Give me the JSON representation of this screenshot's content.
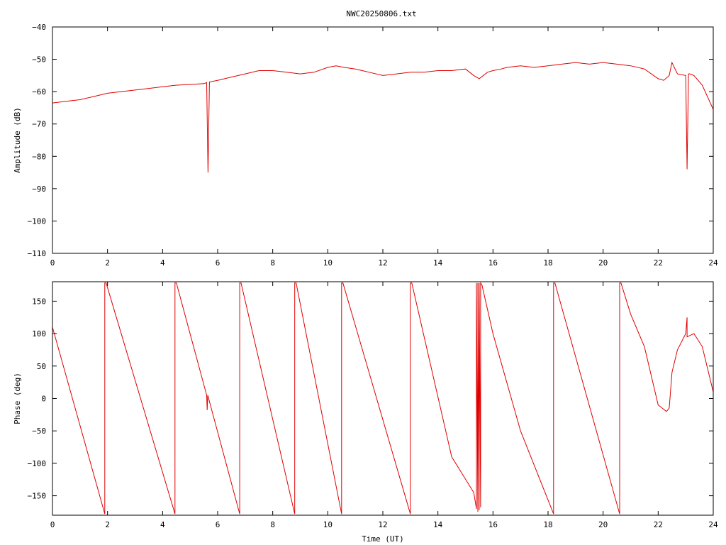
{
  "title": "NWC20250806.txt",
  "colors": {
    "series": "#e00000",
    "axes": "#000000",
    "background": "#ffffff"
  },
  "chart_data": [
    {
      "type": "line",
      "title": "NWC20250806.txt",
      "xlabel": "",
      "ylabel": "Amplitude (dB)",
      "xlim": [
        0,
        24
      ],
      "ylim": [
        -110,
        -40
      ],
      "xticks": [
        0,
        2,
        4,
        6,
        8,
        10,
        12,
        14,
        16,
        18,
        20,
        22,
        24
      ],
      "yticks": [
        -40,
        -50,
        -60,
        -70,
        -80,
        -90,
        -100,
        -110
      ],
      "grid": false,
      "legend": "none",
      "series": [
        {
          "x": [
            0,
            0.5,
            1,
            1.5,
            2,
            2.5,
            3,
            3.5,
            4,
            4.5,
            5,
            5.5,
            5.6,
            5.65,
            5.7,
            6,
            6.5,
            7,
            7.5,
            8,
            8.5,
            9,
            9.5,
            10,
            10.3,
            10.6,
            11,
            11.5,
            12,
            12.5,
            13,
            13.5,
            14,
            14.5,
            15,
            15.3,
            15.5,
            15.8,
            16,
            16.3,
            16.5,
            17,
            17.5,
            18,
            18.5,
            19,
            19.5,
            20,
            20.5,
            21,
            21.5,
            22,
            22.2,
            22.4,
            22.5,
            22.7,
            23,
            23.05,
            23.1,
            23.15,
            23.3,
            23.6,
            24
          ],
          "y": [
            -63.5,
            -63,
            -62.5,
            -61.5,
            -60.5,
            -60,
            -59.5,
            -59,
            -58.5,
            -58,
            -57.8,
            -57.5,
            -57.2,
            -85,
            -57,
            -56.5,
            -55.5,
            -54.5,
            -53.5,
            -53.5,
            -54,
            -54.5,
            -54,
            -52.5,
            -52,
            -52.5,
            -53,
            -54,
            -55,
            -54.5,
            -54,
            -54,
            -53.5,
            -53.5,
            -53,
            -55,
            -56,
            -54,
            -53.5,
            -53,
            -52.5,
            -52,
            -52.5,
            -52,
            -51.5,
            -51,
            -51.5,
            -51,
            -51.5,
            -52,
            -53,
            -56,
            -56.5,
            -55,
            -51,
            -54.5,
            -55,
            -84,
            -54.5,
            -54.5,
            -55,
            -58,
            -65.5
          ]
        }
      ]
    },
    {
      "type": "line",
      "title": "",
      "xlabel": "Time (UT)",
      "ylabel": "Phase (deg)",
      "xlim": [
        0,
        24
      ],
      "ylim": [
        -180,
        180
      ],
      "xticks": [
        0,
        2,
        4,
        6,
        8,
        10,
        12,
        14,
        16,
        18,
        20,
        22,
        24
      ],
      "yticks": [
        150,
        100,
        50,
        0,
        -50,
        -100,
        -150
      ],
      "grid": false,
      "legend": "none",
      "series": [
        {
          "x": [
            0,
            1.9,
            1.9,
            1.95,
            4.45,
            4.45,
            4.5,
            5.6,
            5.62,
            5.64,
            6.8,
            6.8,
            6.85,
            8.8,
            8.8,
            8.85,
            10.5,
            10.5,
            10.55,
            13,
            13,
            13.05,
            14.5,
            15.3,
            15.4,
            15.4,
            15.45,
            15.45,
            15.5,
            15.5,
            15.55,
            15.55,
            15.6,
            16,
            17,
            18.2,
            18.2,
            18.25,
            20.6,
            20.6,
            20.65,
            21,
            21.5,
            22,
            22.3,
            22.4,
            22.5,
            22.7,
            23,
            23.05,
            23.05,
            23.05,
            23.3,
            23.6,
            24
          ],
          "y": [
            110,
            -178,
            178,
            178,
            -178,
            178,
            178,
            5,
            -18,
            5,
            -178,
            178,
            178,
            -178,
            178,
            178,
            -178,
            178,
            178,
            -178,
            178,
            178,
            -90,
            -145,
            -170,
            178,
            -175,
            178,
            -172,
            178,
            -168,
            178,
            175,
            100,
            -50,
            -178,
            178,
            178,
            -178,
            178,
            178,
            130,
            80,
            -10,
            -20,
            -15,
            40,
            75,
            100,
            125,
            95,
            95,
            100,
            80,
            10
          ]
        }
      ]
    }
  ]
}
